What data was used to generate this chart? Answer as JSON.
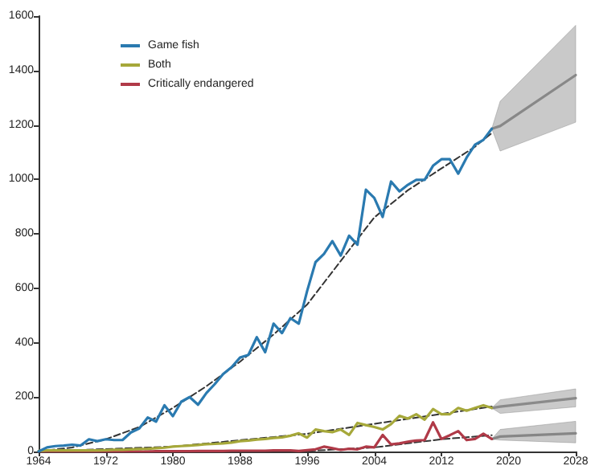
{
  "chart_data": {
    "type": "line",
    "legend": "top left",
    "grid": false,
    "marker": "none",
    "xlim": [
      1964,
      2028
    ],
    "xticks": [
      1964,
      1972,
      1980,
      1988,
      1996,
      2004,
      2012,
      2020,
      2028
    ],
    "ylim": [
      0,
      1600
    ],
    "yticks": [
      0,
      200,
      400,
      600,
      800,
      1000,
      1200,
      1400,
      1600
    ],
    "x": [
      1964,
      1965,
      1966,
      1967,
      1968,
      1969,
      1970,
      1971,
      1972,
      1973,
      1974,
      1975,
      1976,
      1977,
      1978,
      1979,
      1980,
      1981,
      1982,
      1983,
      1984,
      1985,
      1986,
      1987,
      1988,
      1989,
      1990,
      1991,
      1992,
      1993,
      1994,
      1995,
      1996,
      1997,
      1998,
      1999,
      2000,
      2001,
      2002,
      2003,
      2004,
      2005,
      2006,
      2007,
      2008,
      2009,
      2010,
      2011,
      2012,
      2013,
      2014,
      2015,
      2016,
      2017,
      2018
    ],
    "series": [
      {
        "name": "Game fish",
        "color": "#2a7ab0",
        "line_style": "solid",
        "values": [
          0,
          15,
          20,
          22,
          25,
          22,
          45,
          38,
          45,
          42,
          42,
          70,
          85,
          125,
          110,
          170,
          130,
          183,
          200,
          172,
          215,
          248,
          285,
          310,
          345,
          355,
          420,
          365,
          470,
          435,
          490,
          470,
          590,
          696,
          726,
          773,
          720,
          793,
          760,
          962,
          932,
          862,
          992,
          956,
          980,
          998,
          998,
          1050,
          1074,
          1074,
          1021,
          1080,
          1127,
          1145,
          1186
        ]
      },
      {
        "name": "Both",
        "color": "#a6a83a",
        "line_style": "solid",
        "values": [
          2,
          4,
          4,
          4,
          4,
          4,
          4,
          4,
          5,
          6,
          6,
          8,
          9,
          10,
          12,
          14,
          18,
          20,
          22,
          24,
          27,
          28,
          30,
          33,
          38,
          40,
          44,
          46,
          50,
          52,
          58,
          67,
          51,
          81,
          75,
          71,
          81,
          61,
          105,
          97,
          90,
          81,
          101,
          131,
          121,
          137,
          117,
          156,
          137,
          137,
          160,
          150,
          160,
          170,
          160
        ]
      },
      {
        "name": "Critically endangered",
        "color": "#b03a48",
        "line_style": "solid",
        "values": [
          0,
          0,
          0,
          0,
          0,
          0,
          0,
          0,
          0,
          0,
          0,
          0,
          0,
          0,
          1,
          1,
          1,
          1,
          1,
          2,
          2,
          2,
          2,
          3,
          3,
          3,
          3,
          3,
          4,
          4,
          4,
          2,
          5,
          8,
          18,
          12,
          6,
          10,
          8,
          18,
          15,
          61,
          26,
          30,
          36,
          40,
          42,
          107,
          46,
          60,
          75,
          42,
          46,
          65,
          46
        ]
      },
      {
        "type": "line",
        "color": "#333333",
        "line_style": "dashed",
        "x": [
          1964,
          1968,
          1972,
          1976,
          1980,
          1984,
          1988,
          1992,
          1996,
          2000,
          2004,
          2008,
          2012,
          2016,
          2018
        ],
        "values": [
          0,
          15,
          45,
          90,
          160,
          240,
          330,
          430,
          540,
          700,
          860,
          960,
          1040,
          1120,
          1170
        ]
      },
      {
        "type": "line",
        "color": "#333333",
        "line_style": "dashed",
        "x": [
          1964,
          1980,
          1996,
          2008,
          2018
        ],
        "values": [
          0,
          18,
          65,
          120,
          165
        ]
      },
      {
        "type": "line",
        "color": "#333333",
        "line_style": "dashed",
        "x": [
          1964,
          1996,
          2004,
          2012,
          2018
        ],
        "values": [
          0,
          2,
          15,
          45,
          60
        ]
      },
      {
        "type": "line",
        "color": "#888888",
        "line_style": "solid",
        "x": [
          2018,
          2019,
          2028
        ],
        "values": [
          1186,
          1196,
          1383
        ],
        "lower": [
          1186,
          1104,
          1210
        ],
        "upper": [
          1186,
          1287,
          1566
        ]
      },
      {
        "type": "line",
        "color": "#8a8a8a",
        "line_style": "solid",
        "x": [
          2018,
          2019,
          2028
        ],
        "values": [
          160,
          165,
          196
        ],
        "lower": [
          160,
          140,
          164
        ],
        "upper": [
          160,
          190,
          230
        ]
      },
      {
        "type": "line",
        "color": "#868686",
        "line_style": "solid",
        "x": [
          2018,
          2019,
          2028
        ],
        "values": [
          46,
          55,
          67
        ],
        "lower": [
          46,
          42,
          32
        ],
        "upper": [
          46,
          81,
          111
        ]
      }
    ]
  }
}
